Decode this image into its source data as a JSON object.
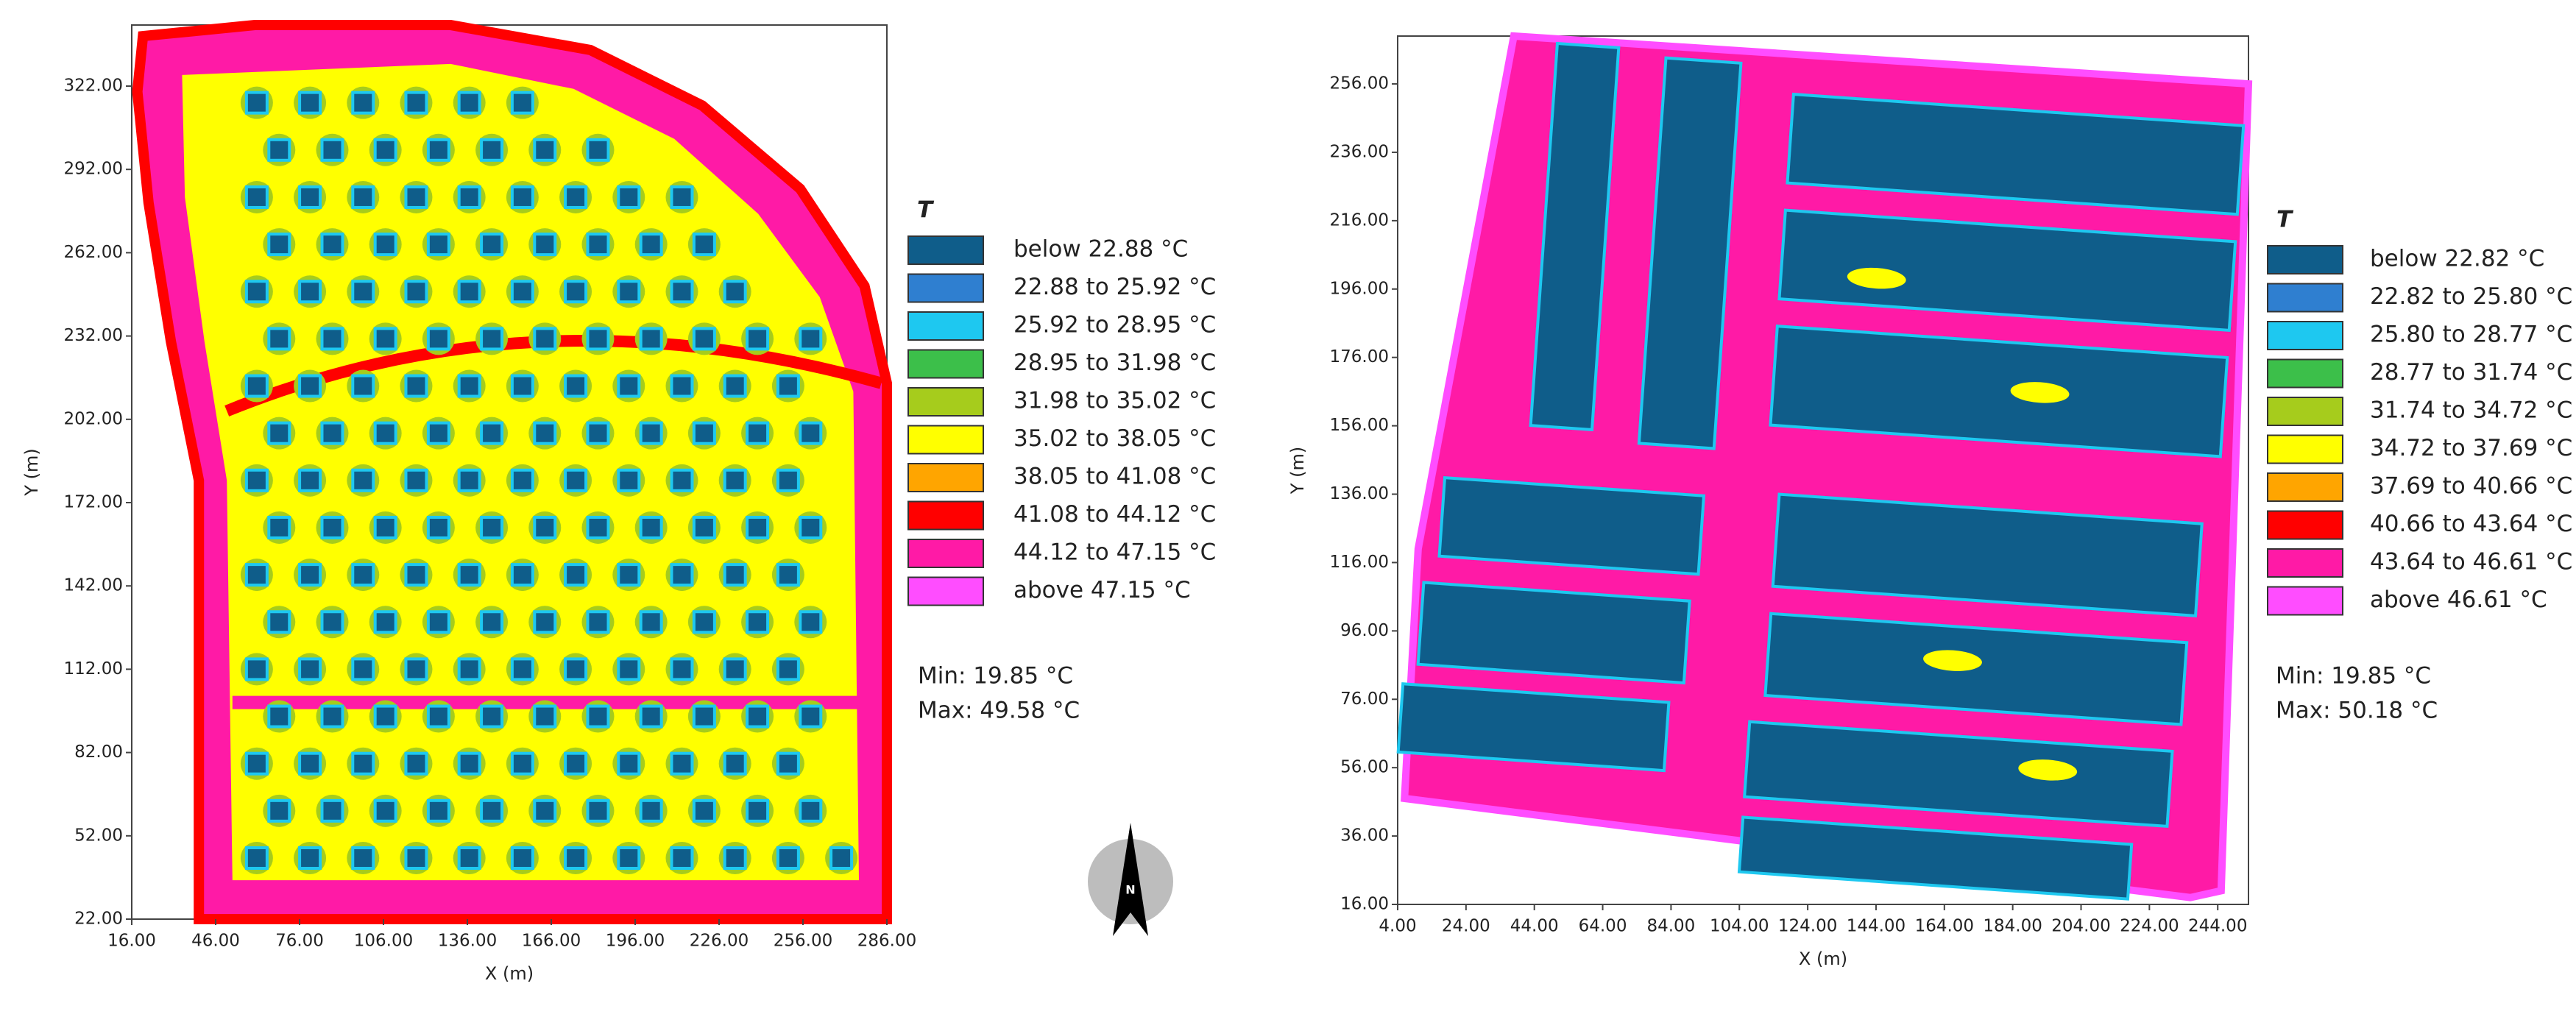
{
  "chart_data": [
    {
      "type": "heatmap",
      "xlabel": "X (m)",
      "ylabel": "Y (m)",
      "xlim": [
        16,
        286
      ],
      "ylim": [
        22,
        344
      ],
      "xticks": [
        {
          "value": 16,
          "label": "16.00"
        },
        {
          "value": 46,
          "label": "46.00"
        },
        {
          "value": 76,
          "label": "76.00"
        },
        {
          "value": 106,
          "label": "106.00"
        },
        {
          "value": 136,
          "label": "136.00"
        },
        {
          "value": 166,
          "label": "166.00"
        },
        {
          "value": 196,
          "label": "196.00"
        },
        {
          "value": 226,
          "label": "226.00"
        },
        {
          "value": 256,
          "label": "256.00"
        },
        {
          "value": 286,
          "label": "286.00"
        }
      ],
      "yticks": [
        {
          "value": 22,
          "label": "22.00"
        },
        {
          "value": 52,
          "label": "52.00"
        },
        {
          "value": 82,
          "label": "82.00"
        },
        {
          "value": 112,
          "label": "112.00"
        },
        {
          "value": 142,
          "label": "142.00"
        },
        {
          "value": 172,
          "label": "172.00"
        },
        {
          "value": 202,
          "label": "202.00"
        },
        {
          "value": 232,
          "label": "232.00"
        },
        {
          "value": 262,
          "label": "262.00"
        },
        {
          "value": 292,
          "label": "292.00"
        },
        {
          "value": 322,
          "label": "322.00"
        }
      ],
      "legend_title": "T",
      "legend": [
        {
          "label": "below 22.88 °C",
          "color": "#0f5d8a"
        },
        {
          "label": "22.88 to 25.92 °C",
          "color": "#2f7fd0"
        },
        {
          "label": "25.92 to 28.95 °C",
          "color": "#1ec8f0"
        },
        {
          "label": "28.95 to 31.98 °C",
          "color": "#3cbf4a"
        },
        {
          "label": "31.98 to 35.02 °C",
          "color": "#a6cc1c"
        },
        {
          "label": "35.02 to 38.05 °C",
          "color": "#ffff00"
        },
        {
          "label": "38.05 to 41.08 °C",
          "color": "#ffa500"
        },
        {
          "label": "41.08 to 44.12 °C",
          "color": "#ff0000"
        },
        {
          "label": "44.12 to 47.15 °C",
          "color": "#ff1aa6"
        },
        {
          "label": "above 47.15 °C",
          "color": "#ff4dff"
        }
      ],
      "annotations": [
        "Min: 19.85 °C",
        "Max: 49.58 °C"
      ]
    },
    {
      "type": "heatmap",
      "xlabel": "X (m)",
      "ylabel": "Y (m)",
      "xlim": [
        4,
        253
      ],
      "ylim": [
        16,
        270
      ],
      "xticks": [
        {
          "value": 4,
          "label": "4.00"
        },
        {
          "value": 24,
          "label": "24.00"
        },
        {
          "value": 44,
          "label": "44.00"
        },
        {
          "value": 64,
          "label": "64.00"
        },
        {
          "value": 84,
          "label": "84.00"
        },
        {
          "value": 104,
          "label": "104.00"
        },
        {
          "value": 124,
          "label": "124.00"
        },
        {
          "value": 144,
          "label": "144.00"
        },
        {
          "value": 164,
          "label": "164.00"
        },
        {
          "value": 184,
          "label": "184.00"
        },
        {
          "value": 204,
          "label": "204.00"
        },
        {
          "value": 224,
          "label": "224.00"
        },
        {
          "value": 244,
          "label": "244.00"
        }
      ],
      "yticks": [
        {
          "value": 16,
          "label": "16.00"
        },
        {
          "value": 36,
          "label": "36.00"
        },
        {
          "value": 56,
          "label": "56.00"
        },
        {
          "value": 76,
          "label": "76.00"
        },
        {
          "value": 96,
          "label": "96.00"
        },
        {
          "value": 116,
          "label": "116.00"
        },
        {
          "value": 136,
          "label": "136.00"
        },
        {
          "value": 156,
          "label": "156.00"
        },
        {
          "value": 176,
          "label": "176.00"
        },
        {
          "value": 196,
          "label": "196.00"
        },
        {
          "value": 216,
          "label": "216.00"
        },
        {
          "value": 236,
          "label": "236.00"
        },
        {
          "value": 256,
          "label": "256.00"
        }
      ],
      "legend_title": "T",
      "legend": [
        {
          "label": "below 22.82 °C",
          "color": "#0f5d8a"
        },
        {
          "label": "22.82 to 25.80 °C",
          "color": "#2f7fd0"
        },
        {
          "label": "25.80 to 28.77 °C",
          "color": "#1ec8f0"
        },
        {
          "label": "28.77 to 31.74 °C",
          "color": "#3cbf4a"
        },
        {
          "label": "31.74 to 34.72 °C",
          "color": "#a6cc1c"
        },
        {
          "label": "34.72 to 37.69 °C",
          "color": "#ffff00"
        },
        {
          "label": "37.69 to 40.66 °C",
          "color": "#ffa500"
        },
        {
          "label": "40.66 to 43.64 °C",
          "color": "#ff0000"
        },
        {
          "label": "43.64 to 46.61 °C",
          "color": "#ff1aa6"
        },
        {
          "label": "above 46.61 °C",
          "color": "#ff4dff"
        }
      ],
      "annotations": [
        "Min: 19.85 °C",
        "Max: 50.18 °C"
      ]
    }
  ],
  "north_arrow": "N"
}
